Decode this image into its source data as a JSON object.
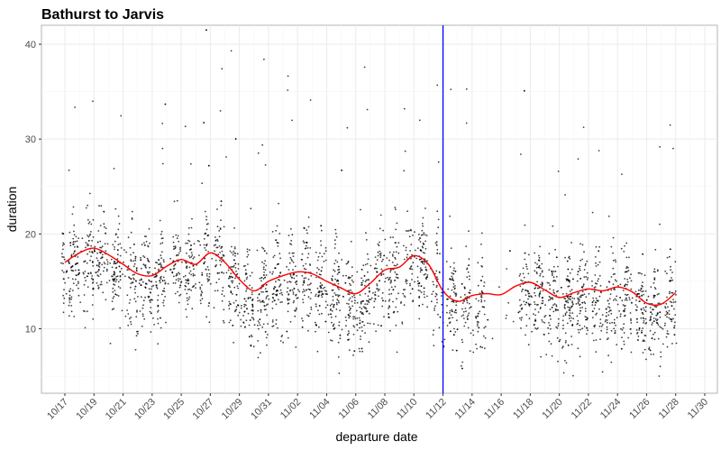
{
  "chart_data": {
    "type": "scatter",
    "title": "Bathurst to Jarvis",
    "xlabel": "departure date",
    "ylabel": "duration",
    "x_start": "10/16",
    "xlim": [
      0.7,
      14.45
    ],
    "x_units": "days",
    "ylim": [
      3.2,
      42
    ],
    "grid": true,
    "y_ticks": [
      10,
      20,
      30,
      40
    ],
    "x_tick_labels": [
      "10/17",
      "10/19",
      "10/21",
      "10/23",
      "10/25",
      "10/27",
      "10/29",
      "10/31",
      "11/02",
      "11/04",
      "11/06",
      "11/08",
      "11/10",
      "11/12",
      "11/14",
      "11/16",
      "11/18",
      "11/20",
      "11/22",
      "11/24",
      "11/26",
      "11/28",
      "11/30"
    ],
    "vline": {
      "x_label": "11/12",
      "color": "#0000ff"
    },
    "series": [
      {
        "name": "",
        "style": "points",
        "color": "#000000",
        "values_description_omitted": true
      },
      {
        "name": "",
        "style": "smooth-line",
        "color": "#ff0000",
        "points": [
          [
            "10/17",
            17.0
          ],
          [
            "10/18",
            18.0
          ],
          [
            "10/19",
            18.5
          ],
          [
            "10/20",
            17.8
          ],
          [
            "10/21",
            16.8
          ],
          [
            "10/22",
            15.8
          ],
          [
            "10/23",
            15.6
          ],
          [
            "10/24",
            16.6
          ],
          [
            "10/25",
            17.3
          ],
          [
            "10/26",
            16.8
          ],
          [
            "10/27",
            18.0
          ],
          [
            "10/28",
            17.0
          ],
          [
            "10/29",
            15.2
          ],
          [
            "10/30",
            14.0
          ],
          [
            "10/31",
            15.0
          ],
          [
            "11/01",
            15.6
          ],
          [
            "11/02",
            16.0
          ],
          [
            "11/03",
            15.8
          ],
          [
            "11/04",
            15.0
          ],
          [
            "11/05",
            14.3
          ],
          [
            "11/06",
            13.7
          ],
          [
            "11/07",
            14.8
          ],
          [
            "11/08",
            16.2
          ],
          [
            "11/09",
            16.5
          ],
          [
            "11/10",
            17.7
          ],
          [
            "11/11",
            16.8
          ],
          [
            "11/12",
            14.0
          ],
          [
            "11/13",
            12.9
          ],
          [
            "11/14",
            13.5
          ],
          [
            "11/15",
            13.7
          ],
          [
            "11/16",
            13.6
          ],
          [
            "11/17",
            14.5
          ],
          [
            "11/18",
            14.9
          ],
          [
            "11/19",
            14.1
          ],
          [
            "11/20",
            13.3
          ],
          [
            "11/21",
            13.8
          ],
          [
            "11/22",
            14.2
          ],
          [
            "11/23",
            14.0
          ],
          [
            "11/24",
            14.4
          ],
          [
            "11/25",
            13.9
          ],
          [
            "11/26",
            12.7
          ],
          [
            "11/27",
            12.6
          ],
          [
            "11/28",
            13.8
          ]
        ]
      }
    ]
  }
}
